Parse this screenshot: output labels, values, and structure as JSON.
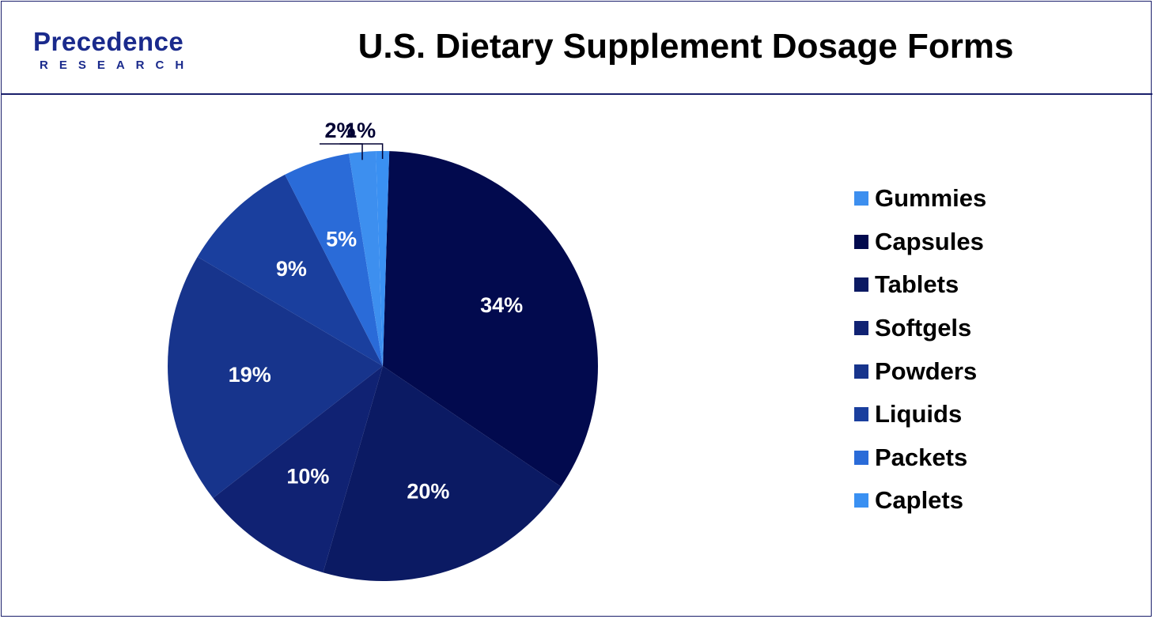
{
  "header": {
    "logo_main": "Precedence",
    "logo_sub": "RESEARCH",
    "logo_color": "#1a2a8c"
  },
  "chart_data": {
    "type": "pie",
    "title": "U.S. Dietary Supplement Dosage Forms",
    "categories": [
      "Gummies",
      "Capsules",
      "Tablets",
      "Softgels",
      "Powders",
      "Liquids",
      "Packets",
      "Caplets"
    ],
    "values": [
      34,
      20,
      10,
      19,
      9,
      5,
      2,
      1
    ],
    "value_labels": [
      "34%",
      "20%",
      "10%",
      "19%",
      "9%",
      "5%",
      "2%",
      "1%"
    ],
    "colors": [
      "#020a4e",
      "#0b1a63",
      "#102273",
      "#17348c",
      "#1a3f9e",
      "#2a6bd8",
      "#3d8fef",
      "#3a90f2"
    ],
    "legend": {
      "position": "right",
      "items": [
        "Gummies",
        "Capsules",
        "Tablets",
        "Softgels",
        "Powders",
        "Liquids",
        "Packets",
        "Caplets"
      ],
      "colors": [
        "#3d8fef",
        "#020a4e",
        "#0b1a63",
        "#102273",
        "#17348c",
        "#1a3f9e",
        "#2a6bd8",
        "#3a90f2"
      ]
    }
  }
}
